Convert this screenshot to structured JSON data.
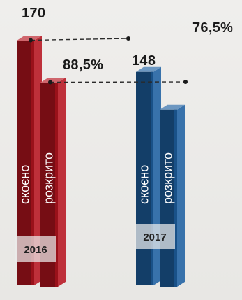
{
  "chart_data": {
    "type": "bar",
    "style": "3d-paired-columns",
    "groups": [
      {
        "year": "2016",
        "color": "#b5141f",
        "bars": [
          {
            "label": "скоєно",
            "value": 170
          },
          {
            "label": "розкрито",
            "value": 88.5,
            "value_label": "88,5%"
          }
        ]
      },
      {
        "year": "2017",
        "color": "#1d5fa0",
        "bars": [
          {
            "label": "скоєно",
            "value": 148
          },
          {
            "label": "розкрито",
            "value": 76.5,
            "value_label": "76,5%"
          }
        ]
      }
    ],
    "labels": {
      "v2016_committed": "170",
      "v2016_solved": "88,5%",
      "v2017_committed": "148",
      "v2017_solved": "76,5%"
    },
    "connectors": "dashed lines linking 2016 values to 2017 values",
    "legend": "none"
  }
}
